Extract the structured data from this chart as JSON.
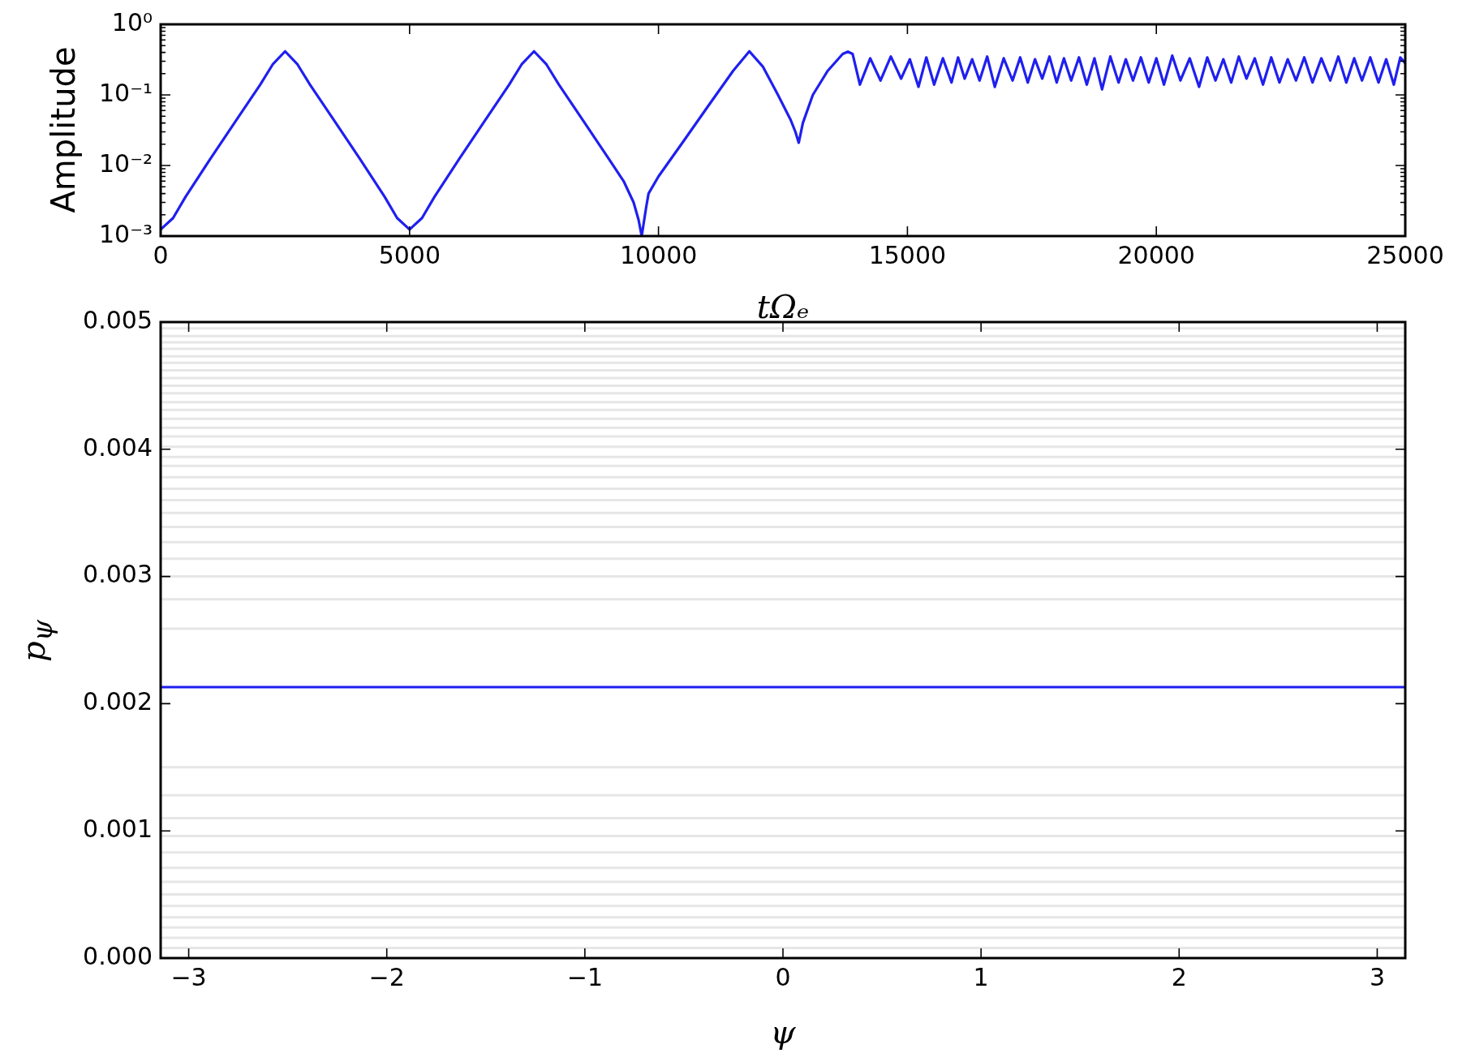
{
  "chart_data": [
    {
      "type": "line",
      "xlabel": "tΩₑ",
      "ylabel": "Amplitude",
      "log": "y",
      "marker": "none",
      "xlim": [
        0,
        25000
      ],
      "xticks": [
        0,
        5000,
        10000,
        15000,
        20000,
        25000
      ],
      "ylim": [
        0.001,
        1
      ],
      "yticks": [
        {
          "value": 0.001,
          "label": "10⁻³"
        },
        {
          "value": 0.002,
          "label": null
        },
        {
          "value": 0.003,
          "label": null
        },
        {
          "value": 0.004,
          "label": null
        },
        {
          "value": 0.005,
          "label": null
        },
        {
          "value": 0.006,
          "label": null
        },
        {
          "value": 0.007,
          "label": null
        },
        {
          "value": 0.008,
          "label": null
        },
        {
          "value": 0.009,
          "label": null
        },
        {
          "value": 0.01,
          "label": "10⁻²"
        },
        {
          "value": 0.02,
          "label": null
        },
        {
          "value": 0.03,
          "label": null
        },
        {
          "value": 0.04,
          "label": null
        },
        {
          "value": 0.05,
          "label": null
        },
        {
          "value": 0.06,
          "label": null
        },
        {
          "value": 0.07,
          "label": null
        },
        {
          "value": 0.08,
          "label": null
        },
        {
          "value": 0.09,
          "label": null
        },
        {
          "value": 0.1,
          "label": "10⁻¹"
        },
        {
          "value": 0.2,
          "label": null
        },
        {
          "value": 0.3,
          "label": null
        },
        {
          "value": 0.4,
          "label": null
        },
        {
          "value": 0.5,
          "label": null
        },
        {
          "value": 0.6,
          "label": null
        },
        {
          "value": 0.7,
          "label": null
        },
        {
          "value": 0.8,
          "label": null
        },
        {
          "value": 0.9,
          "label": null
        },
        {
          "value": 1,
          "label": "10⁰"
        }
      ],
      "series": [
        {
          "color": "#1f1ff0",
          "x": [
            0,
            250,
            500,
            1000,
            1500,
            2000,
            2250,
            2500,
            2750,
            3000,
            3500,
            4000,
            4500,
            4750,
            5000,
            5250,
            5500,
            6000,
            6500,
            7000,
            7250,
            7500,
            7750,
            8000,
            8500,
            9000,
            9300,
            9500,
            9600,
            9663,
            9750,
            9800,
            10000,
            10500,
            11000,
            11500,
            11825,
            12100,
            12400,
            12650,
            12750,
            12817,
            12900,
            13100,
            13400,
            13700,
            13804,
            13900,
            14046,
            14253,
            14460,
            14667,
            14874,
            15048,
            15222,
            15380,
            15537,
            15712,
            15886,
            16018,
            16150,
            16300,
            16449,
            16602,
            16755,
            16934,
            17112,
            17265,
            17418,
            17563,
            17708,
            17853,
            17998,
            18144,
            18289,
            18446,
            18603,
            18757,
            18910,
            19076,
            19242,
            19387,
            19531,
            19689,
            19847,
            20000,
            20153,
            20319,
            20484,
            20671,
            20858,
            21023,
            21188,
            21346,
            21503,
            21657,
            21811,
            21977,
            22142,
            22308,
            22473,
            22639,
            22805,
            22971,
            23137,
            23315,
            23493,
            23655,
            23816,
            23974,
            24131,
            24297,
            24463,
            24617,
            24770,
            24900,
            25000
          ],
          "values": [
            0.00124,
            0.0018,
            0.0036,
            0.0125,
            0.042,
            0.14,
            0.27,
            0.415,
            0.27,
            0.14,
            0.042,
            0.0125,
            0.0036,
            0.0018,
            0.00124,
            0.0018,
            0.0036,
            0.0125,
            0.042,
            0.14,
            0.27,
            0.415,
            0.27,
            0.14,
            0.042,
            0.0125,
            0.006,
            0.003,
            0.0017,
            0.001,
            0.0025,
            0.004,
            0.007,
            0.022,
            0.07,
            0.22,
            0.415,
            0.25,
            0.1,
            0.045,
            0.03,
            0.021,
            0.04,
            0.1,
            0.22,
            0.38,
            0.41,
            0.38,
            0.14,
            0.33,
            0.16,
            0.35,
            0.17,
            0.32,
            0.13,
            0.34,
            0.14,
            0.33,
            0.15,
            0.34,
            0.17,
            0.32,
            0.16,
            0.35,
            0.13,
            0.33,
            0.16,
            0.34,
            0.15,
            0.32,
            0.17,
            0.35,
            0.15,
            0.33,
            0.16,
            0.34,
            0.14,
            0.33,
            0.12,
            0.35,
            0.15,
            0.32,
            0.16,
            0.34,
            0.15,
            0.33,
            0.14,
            0.36,
            0.16,
            0.33,
            0.13,
            0.34,
            0.16,
            0.32,
            0.15,
            0.35,
            0.17,
            0.33,
            0.14,
            0.34,
            0.15,
            0.32,
            0.16,
            0.34,
            0.15,
            0.33,
            0.16,
            0.35,
            0.15,
            0.33,
            0.16,
            0.34,
            0.15,
            0.32,
            0.14,
            0.34,
            0.28
          ]
        }
      ]
    },
    {
      "type": "line",
      "xlabel": "ψ",
      "ylabel": "p$_{ψ}$",
      "marker": "none",
      "xlim": [
        -3.1416,
        3.1416
      ],
      "xticks": [
        {
          "value": -3,
          "label": "−3"
        },
        {
          "value": -2,
          "label": "−2"
        },
        {
          "value": -1,
          "label": "−1"
        },
        0,
        1,
        2,
        3
      ],
      "ylim": [
        0,
        0.005
      ],
      "yticks": [
        {
          "value": 0,
          "label": "0.000"
        },
        0.001,
        0.002,
        0.003,
        0.004,
        0.005
      ],
      "series": [
        {
          "color": "#1f1ff0",
          "x": [
            -3.1416,
            3.1416
          ],
          "values": [
            0.00213,
            0.00213
          ]
        },
        {
          "color": "#e6e6e6",
          "x": [
            -3.1416,
            3.1416
          ],
          "values": [
            0.00495,
            0.00495
          ]
        },
        {
          "color": "#e6e6e6",
          "x": [
            -3.1416,
            3.1416
          ],
          "values": [
            0.00489,
            0.00489
          ]
        },
        {
          "color": "#e6e6e6",
          "x": [
            -3.1416,
            3.1416
          ],
          "values": [
            0.00484,
            0.00484
          ]
        },
        {
          "color": "#e6e6e6",
          "x": [
            -3.1416,
            3.1416
          ],
          "values": [
            0.00479,
            0.00479
          ]
        },
        {
          "color": "#e6e6e6",
          "x": [
            -3.1416,
            3.1416
          ],
          "values": [
            0.00473,
            0.00473
          ]
        },
        {
          "color": "#e6e6e6",
          "x": [
            -3.1416,
            3.1416
          ],
          "values": [
            0.00468,
            0.00468
          ]
        },
        {
          "color": "#e6e6e6",
          "x": [
            -3.1416,
            3.1416
          ],
          "values": [
            0.00462,
            0.00462
          ]
        },
        {
          "color": "#e6e6e6",
          "x": [
            -3.1416,
            3.1416
          ],
          "values": [
            0.00456,
            0.00456
          ]
        },
        {
          "color": "#e6e6e6",
          "x": [
            -3.1416,
            3.1416
          ],
          "values": [
            0.0045,
            0.0045
          ]
        },
        {
          "color": "#e6e6e6",
          "x": [
            -3.1416,
            3.1416
          ],
          "values": [
            0.00444,
            0.00444
          ]
        },
        {
          "color": "#e6e6e6",
          "x": [
            -3.1416,
            3.1416
          ],
          "values": [
            0.00437,
            0.00437
          ]
        },
        {
          "color": "#e6e6e6",
          "x": [
            -3.1416,
            3.1416
          ],
          "values": [
            0.00431,
            0.00431
          ]
        },
        {
          "color": "#e6e6e6",
          "x": [
            -3.1416,
            3.1416
          ],
          "values": [
            0.00424,
            0.00424
          ]
        },
        {
          "color": "#e6e6e6",
          "x": [
            -3.1416,
            3.1416
          ],
          "values": [
            0.00417,
            0.00417
          ]
        },
        {
          "color": "#e6e6e6",
          "x": [
            -3.1416,
            3.1416
          ],
          "values": [
            0.0041,
            0.0041
          ]
        },
        {
          "color": "#e6e6e6",
          "x": [
            -3.1416,
            3.1416
          ],
          "values": [
            0.00402,
            0.00402
          ]
        },
        {
          "color": "#e6e6e6",
          "x": [
            -3.1416,
            3.1416
          ],
          "values": [
            0.00394,
            0.00394
          ]
        },
        {
          "color": "#e6e6e6",
          "x": [
            -3.1416,
            3.1416
          ],
          "values": [
            0.00387,
            0.00387
          ]
        },
        {
          "color": "#e6e6e6",
          "x": [
            -3.1416,
            3.1416
          ],
          "values": [
            0.00378,
            0.00378
          ]
        },
        {
          "color": "#e6e6e6",
          "x": [
            -3.1416,
            3.1416
          ],
          "values": [
            0.00369,
            0.00369
          ]
        },
        {
          "color": "#e6e6e6",
          "x": [
            -3.1416,
            3.1416
          ],
          "values": [
            0.0036,
            0.0036
          ]
        },
        {
          "color": "#e6e6e6",
          "x": [
            -3.1416,
            3.1416
          ],
          "values": [
            0.0035,
            0.0035
          ]
        },
        {
          "color": "#e6e6e6",
          "x": [
            -3.1416,
            3.1416
          ],
          "values": [
            0.00339,
            0.00339
          ]
        },
        {
          "color": "#e6e6e6",
          "x": [
            -3.1416,
            3.1416
          ],
          "values": [
            0.00327,
            0.00327
          ]
        },
        {
          "color": "#e6e6e6",
          "x": [
            -3.1416,
            3.1416
          ],
          "values": [
            0.00314,
            0.00314
          ]
        },
        {
          "color": "#e6e6e6",
          "x": [
            -3.1416,
            3.1416
          ],
          "values": [
            0.003,
            0.003
          ]
        },
        {
          "color": "#e6e6e6",
          "x": [
            -3.1416,
            3.1416
          ],
          "values": [
            0.00282,
            0.00282
          ]
        },
        {
          "color": "#e6e6e6",
          "x": [
            -3.1416,
            3.1416
          ],
          "values": [
            0.00259,
            0.00259
          ]
        },
        {
          "color": "#e6e6e6",
          "x": [
            -3.1416,
            3.1416
          ],
          "values": [
            0.0015,
            0.0015
          ]
        },
        {
          "color": "#e6e6e6",
          "x": [
            -3.1416,
            3.1416
          ],
          "values": [
            0.00128,
            0.00128
          ]
        },
        {
          "color": "#e6e6e6",
          "x": [
            -3.1416,
            3.1416
          ],
          "values": [
            0.0011,
            0.0011
          ]
        },
        {
          "color": "#e6e6e6",
          "x": [
            -3.1416,
            3.1416
          ],
          "values": [
            0.00096,
            0.00096
          ]
        },
        {
          "color": "#e6e6e6",
          "x": [
            -3.1416,
            3.1416
          ],
          "values": [
            0.00083,
            0.00083
          ]
        },
        {
          "color": "#e6e6e6",
          "x": [
            -3.1416,
            3.1416
          ],
          "values": [
            0.00071,
            0.00071
          ]
        },
        {
          "color": "#e6e6e6",
          "x": [
            -3.1416,
            3.1416
          ],
          "values": [
            0.0006,
            0.0006
          ]
        },
        {
          "color": "#e6e6e6",
          "x": [
            -3.1416,
            3.1416
          ],
          "values": [
            0.0005,
            0.0005
          ]
        },
        {
          "color": "#e6e6e6",
          "x": [
            -3.1416,
            3.1416
          ],
          "values": [
            0.00041,
            0.00041
          ]
        },
        {
          "color": "#e6e6e6",
          "x": [
            -3.1416,
            3.1416
          ],
          "values": [
            0.00032,
            0.00032
          ]
        },
        {
          "color": "#e6e6e6",
          "x": [
            -3.1416,
            3.1416
          ],
          "values": [
            0.00024,
            0.00024
          ]
        },
        {
          "color": "#e6e6e6",
          "x": [
            -3.1416,
            3.1416
          ],
          "values": [
            0.00016,
            0.00016
          ]
        },
        {
          "color": "#e6e6e6",
          "x": [
            -3.1416,
            3.1416
          ],
          "values": [
            8e-05,
            8e-05
          ]
        }
      ]
    }
  ]
}
